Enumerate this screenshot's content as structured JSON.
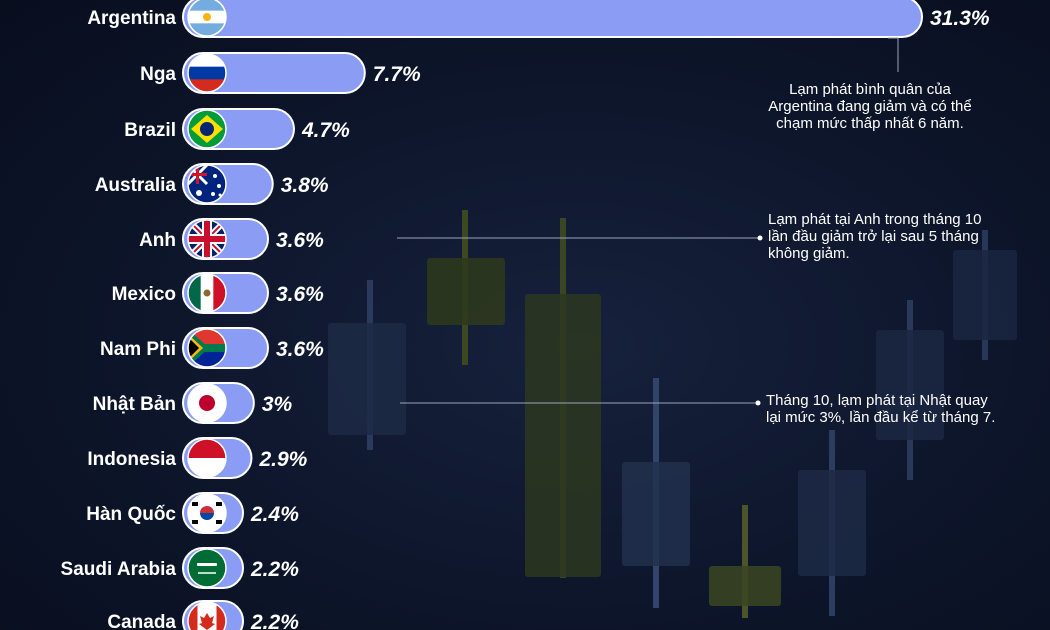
{
  "chart_data": {
    "type": "bar",
    "orientation": "horizontal",
    "value_unit": "%",
    "bar_color": "#8b9cf4",
    "categories": [
      "Argentina",
      "Nga",
      "Brazil",
      "Australia",
      "Anh",
      "Mexico",
      "Nam Phi",
      "Nhật Bản",
      "Indonesia",
      "Hàn Quốc",
      "Saudi Arabia",
      "Canada"
    ],
    "values": [
      31.3,
      7.7,
      4.7,
      3.8,
      3.6,
      3.6,
      3.6,
      3.0,
      2.9,
      2.4,
      2.2,
      2.2
    ],
    "value_labels": [
      "31.3%",
      "7.7%",
      "4.7%",
      "3.8%",
      "3.6%",
      "3.6%",
      "3.6%",
      "3%",
      "2.9%",
      "2.4%",
      "2.2%",
      "2.2%"
    ],
    "flags": [
      "argentina-flag-icon",
      "russia-flag-icon",
      "brazil-flag-icon",
      "australia-flag-icon",
      "uk-flag-icon",
      "mexico-flag-icon",
      "south-africa-flag-icon",
      "japan-flag-icon",
      "indonesia-flag-icon",
      "south-korea-flag-icon",
      "saudi-arabia-flag-icon",
      "canada-flag-icon"
    ]
  },
  "annotations": [
    {
      "target": "Argentina",
      "lines": [
        "Lạm phát bình quân của",
        "Argentina đang giảm và có thể",
        "chạm mức thấp nhất 6 năm."
      ]
    },
    {
      "target": "Anh",
      "lines": [
        "Lạm phát tại Anh trong tháng 10",
        "lần đầu giảm trở lại sau 5 tháng",
        "không giảm."
      ]
    },
    {
      "target": "Nhật Bản",
      "lines": [
        "Tháng 10, lạm phát tại Nhật quay",
        "lại mức 3%, lần đầu kể từ tháng 7."
      ]
    }
  ]
}
